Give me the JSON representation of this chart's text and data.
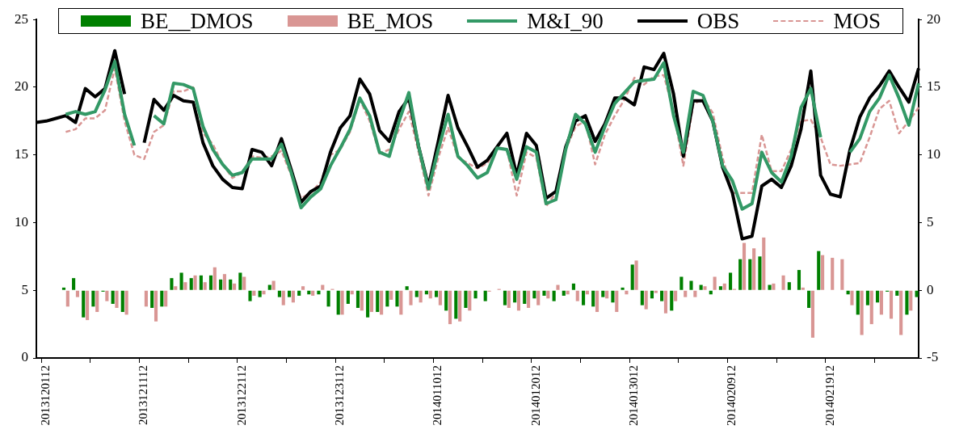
{
  "chart_data": {
    "type": "line",
    "categories": [
      null,
      "2013120112",
      null,
      null,
      null,
      null,
      null,
      null,
      null,
      null,
      null,
      "2013121112",
      null,
      null,
      null,
      null,
      null,
      null,
      null,
      null,
      null,
      "2013122112",
      null,
      null,
      null,
      null,
      null,
      null,
      null,
      null,
      null,
      "2013123112",
      null,
      null,
      null,
      null,
      null,
      null,
      null,
      null,
      null,
      "2014011012",
      null,
      null,
      null,
      null,
      null,
      null,
      null,
      null,
      null,
      "2014012012",
      null,
      null,
      null,
      null,
      null,
      null,
      null,
      null,
      null,
      "2014013012",
      null,
      null,
      null,
      null,
      null,
      null,
      null,
      null,
      null,
      "2014020912",
      null,
      null,
      null,
      null,
      null,
      null,
      null,
      null,
      null,
      "2014021912",
      null,
      null,
      null,
      null,
      null,
      null,
      null,
      null,
      null
    ],
    "series": [
      {
        "name": "BE__DMOS",
        "type": "bar",
        "axis": "y2",
        "color": "#008000",
        "values": [
          null,
          null,
          null,
          0.2,
          0.9,
          -2.0,
          -1.2,
          -0.1,
          -1.0,
          -1.6,
          null,
          null,
          -1.3,
          -1.2,
          0.9,
          1.3,
          0.9,
          1.1,
          1.1,
          0.8,
          0.8,
          1.3,
          -0.8,
          -0.5,
          0.4,
          -0.5,
          -0.5,
          -0.4,
          -0.3,
          -0.3,
          -1.2,
          -1.8,
          -1.0,
          -1.3,
          -2.0,
          -1.6,
          -1.2,
          -1.2,
          0.3,
          -0.5,
          -0.3,
          -0.5,
          -1.5,
          -2.1,
          -1.3,
          -0.6,
          -0.8,
          null,
          -1.1,
          -0.9,
          -1.0,
          -0.6,
          -0.4,
          -0.8,
          -0.4,
          0.5,
          -1.1,
          -1.2,
          -0.5,
          -0.9,
          0.2,
          1.9,
          -1.1,
          -0.6,
          -0.8,
          -1.5,
          1.0,
          0.7,
          0.4,
          -0.3,
          0.3,
          1.3,
          2.3,
          2.3,
          2.5,
          0.4,
          null,
          0.6,
          1.5,
          -1.3,
          2.9,
          null,
          null,
          -0.3,
          -1.8,
          -1.1,
          -0.9,
          -0.1,
          -0.4,
          -1.8,
          -0.5
        ]
      },
      {
        "name": "BE_MOS",
        "type": "bar",
        "axis": "y2",
        "color": "#d99694",
        "values": [
          null,
          null,
          null,
          -1.2,
          -0.5,
          -2.2,
          -1.6,
          -0.8,
          -1.3,
          -1.8,
          null,
          -1.2,
          -2.3,
          -1.2,
          0.3,
          0.6,
          1.1,
          0.6,
          1.7,
          1.2,
          0.5,
          1.0,
          -0.4,
          -0.3,
          0.7,
          -1.1,
          -0.9,
          0.3,
          -0.4,
          0.4,
          0.1,
          -1.8,
          -0.3,
          -1.5,
          -1.6,
          -1.8,
          -0.7,
          -1.8,
          -1.1,
          -0.9,
          -0.6,
          -1.1,
          -2.5,
          -2.3,
          -1.5,
          null,
          -0.1,
          0.1,
          -1.3,
          -1.5,
          -1.3,
          -1.1,
          -0.6,
          0.4,
          -0.3,
          -0.8,
          -0.3,
          -1.6,
          -0.6,
          -1.6,
          -0.3,
          2.2,
          -1.4,
          -0.2,
          -1.7,
          -0.8,
          -0.5,
          -0.5,
          0.3,
          1.0,
          0.5,
          0.1,
          3.5,
          3.1,
          3.9,
          0.5,
          1.1,
          null,
          0.2,
          -3.5,
          2.6,
          2.4,
          2.3,
          -1.1,
          -3.3,
          -2.5,
          -1.8,
          -2.1,
          -3.3,
          -1.5,
          null
        ]
      },
      {
        "name": "M&I_90",
        "color": "#339966",
        "line_style": "solid",
        "values": [
          null,
          null,
          null,
          18.0,
          18.2,
          18.0,
          18.2,
          19.8,
          21.9,
          18.0,
          15.7,
          null,
          17.9,
          17.3,
          20.3,
          20.2,
          19.9,
          17.1,
          15.4,
          14.3,
          13.5,
          13.7,
          14.7,
          14.7,
          14.7,
          15.8,
          13.7,
          11.1,
          11.9,
          12.5,
          14.2,
          15.5,
          16.9,
          19.2,
          17.9,
          15.2,
          14.9,
          17.5,
          19.6,
          15.6,
          12.5,
          15.4,
          18.0,
          14.9,
          14.2,
          13.3,
          13.7,
          15.5,
          15.4,
          13.2,
          15.6,
          15.2,
          11.4,
          11.7,
          15.4,
          18.0,
          17.3,
          15.2,
          17.1,
          18.8,
          19.6,
          20.4,
          20.5,
          20.6,
          21.8,
          17.9,
          15.2,
          19.7,
          19.4,
          17.5,
          14.2,
          13.1,
          11.0,
          11.4,
          15.2,
          13.7,
          13.0,
          14.9,
          18.5,
          19.9,
          16.3,
          null,
          null,
          15.2,
          16.2,
          18.2,
          19.2,
          20.9,
          19.2,
          17.2,
          20.3
        ]
      },
      {
        "name": "OBS",
        "color": "#000000",
        "line_style": "solid",
        "values": [
          17.4,
          17.5,
          17.7,
          17.9,
          17.4,
          19.9,
          19.3,
          19.9,
          22.7,
          19.5,
          null,
          15.9,
          19.1,
          18.3,
          19.4,
          19.0,
          18.9,
          15.9,
          14.2,
          13.2,
          12.6,
          12.5,
          15.4,
          15.2,
          14.2,
          16.2,
          13.9,
          11.5,
          12.3,
          12.7,
          15.2,
          17.0,
          17.9,
          20.6,
          19.5,
          16.8,
          16.0,
          18.2,
          19.2,
          15.6,
          12.7,
          16.0,
          19.4,
          17.0,
          15.6,
          14.1,
          14.6,
          15.6,
          16.6,
          13.5,
          16.6,
          15.7,
          11.8,
          12.3,
          15.6,
          17.5,
          17.9,
          16.0,
          17.3,
          19.2,
          19.2,
          18.7,
          21.5,
          21.3,
          22.5,
          19.5,
          14.9,
          19.0,
          19.0,
          17.5,
          14.1,
          12.2,
          8.8,
          9.0,
          12.7,
          13.2,
          12.6,
          14.2,
          16.9,
          21.2,
          13.5,
          12.1,
          11.9,
          15.4,
          17.8,
          19.2,
          20.1,
          21.2,
          20.0,
          18.9,
          21.4
        ]
      },
      {
        "name": "MOS",
        "color": "#d99694",
        "line_style": "dashed",
        "values": [
          null,
          null,
          null,
          16.7,
          16.9,
          17.7,
          17.7,
          18.3,
          21.4,
          17.5,
          15.0,
          14.7,
          16.7,
          17.2,
          19.7,
          19.7,
          20.0,
          16.6,
          15.8,
          14.3,
          13.3,
          13.7,
          14.9,
          14.8,
          14.9,
          15.3,
          13.5,
          11.8,
          12.2,
          13.0,
          15.0,
          15.4,
          16.7,
          19.1,
          17.5,
          15.1,
          15.4,
          16.9,
          18.2,
          15.2,
          12.0,
          14.8,
          17.0,
          14.8,
          14.4,
          14.0,
          14.4,
          15.6,
          15.4,
          12.0,
          15.2,
          14.8,
          11.2,
          12.2,
          15.4,
          17.1,
          17.5,
          14.3,
          16.5,
          17.9,
          19.1,
          20.7,
          20.2,
          20.8,
          20.9,
          18.2,
          14.2,
          18.7,
          19.2,
          18.1,
          14.8,
          12.2,
          12.2,
          12.2,
          16.5,
          13.8,
          13.8,
          15.4,
          17.5,
          17.6,
          16.3,
          14.3,
          14.2,
          14.3,
          14.4,
          16.3,
          18.4,
          19.0,
          16.6,
          17.5,
          18.5
        ]
      }
    ],
    "ylim": [
      0,
      25
    ],
    "yticks": [
      0,
      5,
      10,
      15,
      20,
      25
    ],
    "y2lim": [
      -5,
      20
    ],
    "y2ticks": [
      -5,
      0,
      5,
      10,
      15,
      20
    ],
    "legend": "top",
    "grid": false,
    "marker": "none"
  }
}
